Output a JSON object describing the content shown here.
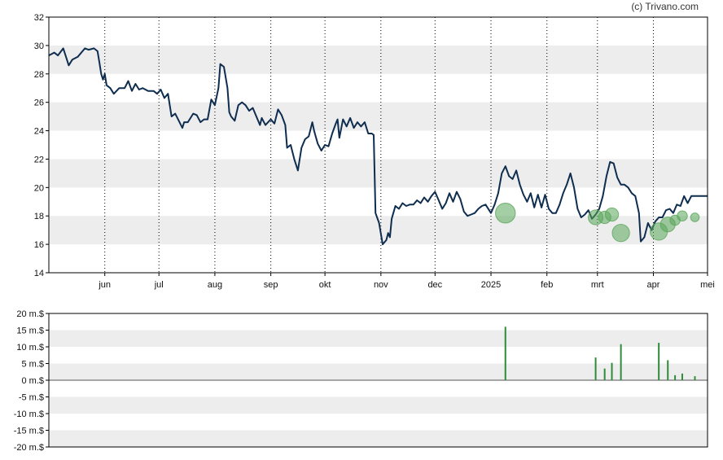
{
  "credit": "(c) Trivano.com",
  "colors": {
    "price_line": "#0e2d4f",
    "bar": "#2e8b3a",
    "bubble": "#5aa55a",
    "band": "#ededed",
    "grid_dotted": "#000000",
    "frame": "#000000"
  },
  "chart_data": [
    {
      "type": "line",
      "title": "",
      "xlabel": "",
      "ylabel": "",
      "ylim": [
        14,
        32
      ],
      "y_ticks": [
        "14",
        "16",
        "18",
        "20",
        "22",
        "24",
        "26",
        "28",
        "30",
        "32"
      ],
      "x_range": [
        "2024-05-01",
        "2025-05-01"
      ],
      "x_ticks": [
        {
          "label": "jun",
          "date": "2024-06-01"
        },
        {
          "label": "jul",
          "date": "2024-07-01"
        },
        {
          "label": "aug",
          "date": "2024-08-01"
        },
        {
          "label": "sep",
          "date": "2024-09-01"
        },
        {
          "label": "okt",
          "date": "2024-10-01"
        },
        {
          "label": "nov",
          "date": "2024-11-01"
        },
        {
          "label": "dec",
          "date": "2024-12-01"
        },
        {
          "label": "2025",
          "date": "2025-01-01"
        },
        {
          "label": "feb",
          "date": "2025-02-01"
        },
        {
          "label": "mrt",
          "date": "2025-03-01"
        },
        {
          "label": "apr",
          "date": "2025-04-01"
        },
        {
          "label": "mei",
          "date": "2025-05-01"
        }
      ],
      "grid": "alternating horizontal bands, dotted vertical month lines",
      "series": [
        {
          "points": [
            [
              "2024-05-01",
              29.3
            ],
            [
              "2024-05-04",
              29.5
            ],
            [
              "2024-05-06",
              29.3
            ],
            [
              "2024-05-09",
              29.8
            ],
            [
              "2024-05-11",
              29.0
            ],
            [
              "2024-05-12",
              28.6
            ],
            [
              "2024-05-14",
              29.0
            ],
            [
              "2024-05-17",
              29.2
            ],
            [
              "2024-05-21",
              29.8
            ],
            [
              "2024-05-23",
              29.7
            ],
            [
              "2024-05-26",
              29.8
            ],
            [
              "2024-05-28",
              29.6
            ],
            [
              "2024-05-29",
              28.8
            ],
            [
              "2024-05-30",
              28.0
            ],
            [
              "2024-05-31",
              27.6
            ],
            [
              "2024-06-01",
              28.0
            ],
            [
              "2024-06-02",
              27.2
            ],
            [
              "2024-06-04",
              27.0
            ],
            [
              "2024-06-06",
              26.6
            ],
            [
              "2024-06-09",
              27.0
            ],
            [
              "2024-06-12",
              27.0
            ],
            [
              "2024-06-14",
              27.5
            ],
            [
              "2024-06-16",
              26.8
            ],
            [
              "2024-06-18",
              27.3
            ],
            [
              "2024-06-20",
              26.9
            ],
            [
              "2024-06-22",
              27.0
            ],
            [
              "2024-06-25",
              26.8
            ],
            [
              "2024-06-28",
              26.8
            ],
            [
              "2024-06-30",
              26.6
            ],
            [
              "2024-07-02",
              26.9
            ],
            [
              "2024-07-04",
              26.3
            ],
            [
              "2024-07-06",
              26.6
            ],
            [
              "2024-07-08",
              25.0
            ],
            [
              "2024-07-10",
              25.2
            ],
            [
              "2024-07-12",
              24.7
            ],
            [
              "2024-07-14",
              24.2
            ],
            [
              "2024-07-15",
              24.6
            ],
            [
              "2024-07-17",
              24.6
            ],
            [
              "2024-07-20",
              25.2
            ],
            [
              "2024-07-22",
              25.1
            ],
            [
              "2024-07-24",
              24.6
            ],
            [
              "2024-07-26",
              24.8
            ],
            [
              "2024-07-28",
              24.8
            ],
            [
              "2024-07-30",
              26.2
            ],
            [
              "2024-08-01",
              25.8
            ],
            [
              "2024-08-03",
              27.0
            ],
            [
              "2024-08-04",
              28.7
            ],
            [
              "2024-08-06",
              28.5
            ],
            [
              "2024-08-08",
              27.0
            ],
            [
              "2024-08-09",
              25.3
            ],
            [
              "2024-08-10",
              25.0
            ],
            [
              "2024-08-12",
              24.7
            ],
            [
              "2024-08-14",
              25.8
            ],
            [
              "2024-08-16",
              26.0
            ],
            [
              "2024-08-18",
              25.8
            ],
            [
              "2024-08-20",
              25.4
            ],
            [
              "2024-08-22",
              25.6
            ],
            [
              "2024-08-24",
              25.0
            ],
            [
              "2024-08-26",
              24.4
            ],
            [
              "2024-08-27",
              24.9
            ],
            [
              "2024-08-29",
              24.4
            ],
            [
              "2024-09-01",
              24.8
            ],
            [
              "2024-09-03",
              24.5
            ],
            [
              "2024-09-05",
              25.5
            ],
            [
              "2024-09-07",
              25.1
            ],
            [
              "2024-09-09",
              24.4
            ],
            [
              "2024-09-10",
              22.8
            ],
            [
              "2024-09-12",
              23.0
            ],
            [
              "2024-09-14",
              22.0
            ],
            [
              "2024-09-16",
              21.2
            ],
            [
              "2024-09-18",
              22.8
            ],
            [
              "2024-09-20",
              23.4
            ],
            [
              "2024-09-22",
              23.6
            ],
            [
              "2024-09-24",
              24.6
            ],
            [
              "2024-09-25",
              24.0
            ],
            [
              "2024-09-27",
              23.1
            ],
            [
              "2024-09-29",
              22.6
            ],
            [
              "2024-10-01",
              23.0
            ],
            [
              "2024-10-03",
              22.9
            ],
            [
              "2024-10-05",
              23.8
            ],
            [
              "2024-10-07",
              24.5
            ],
            [
              "2024-10-08",
              24.8
            ],
            [
              "2024-10-09",
              23.5
            ],
            [
              "2024-10-11",
              24.8
            ],
            [
              "2024-10-13",
              24.3
            ],
            [
              "2024-10-15",
              24.9
            ],
            [
              "2024-10-17",
              24.2
            ],
            [
              "2024-10-19",
              24.6
            ],
            [
              "2024-10-21",
              24.3
            ],
            [
              "2024-10-23",
              24.6
            ],
            [
              "2024-10-25",
              23.8
            ],
            [
              "2024-10-27",
              23.8
            ],
            [
              "2024-10-28",
              23.7
            ],
            [
              "2024-10-29",
              18.2
            ],
            [
              "2024-10-31",
              17.5
            ],
            [
              "2024-11-02",
              16.0
            ],
            [
              "2024-11-04",
              16.3
            ],
            [
              "2024-11-05",
              16.8
            ],
            [
              "2024-11-06",
              16.5
            ],
            [
              "2024-11-07",
              17.8
            ],
            [
              "2024-11-09",
              18.7
            ],
            [
              "2024-11-11",
              18.5
            ],
            [
              "2024-11-13",
              18.9
            ],
            [
              "2024-11-15",
              18.7
            ],
            [
              "2024-11-17",
              18.8
            ],
            [
              "2024-11-19",
              18.8
            ],
            [
              "2024-11-21",
              19.1
            ],
            [
              "2024-11-23",
              18.9
            ],
            [
              "2024-11-25",
              19.3
            ],
            [
              "2024-11-27",
              19.0
            ],
            [
              "2024-11-29",
              19.4
            ],
            [
              "2024-12-01",
              19.7
            ],
            [
              "2024-12-03",
              19.1
            ],
            [
              "2024-12-05",
              18.5
            ],
            [
              "2024-12-07",
              18.9
            ],
            [
              "2024-12-09",
              19.6
            ],
            [
              "2024-12-11",
              19.0
            ],
            [
              "2024-12-13",
              19.7
            ],
            [
              "2024-12-15",
              19.2
            ],
            [
              "2024-12-17",
              18.3
            ],
            [
              "2024-12-19",
              18.0
            ],
            [
              "2024-12-21",
              18.1
            ],
            [
              "2024-12-23",
              18.2
            ],
            [
              "2024-12-25",
              18.5
            ],
            [
              "2024-12-27",
              18.7
            ],
            [
              "2024-12-29",
              18.8
            ],
            [
              "2024-12-31",
              18.4
            ],
            [
              "2025-01-01",
              18.2
            ],
            [
              "2025-01-03",
              18.8
            ],
            [
              "2025-01-05",
              19.6
            ],
            [
              "2025-01-07",
              21.0
            ],
            [
              "2025-01-09",
              21.5
            ],
            [
              "2025-01-11",
              20.8
            ],
            [
              "2025-01-13",
              20.6
            ],
            [
              "2025-01-15",
              21.2
            ],
            [
              "2025-01-17",
              20.2
            ],
            [
              "2025-01-19",
              19.5
            ],
            [
              "2025-01-21",
              19.0
            ],
            [
              "2025-01-23",
              19.6
            ],
            [
              "2025-01-25",
              18.6
            ],
            [
              "2025-01-27",
              19.5
            ],
            [
              "2025-01-29",
              18.6
            ],
            [
              "2025-01-31",
              19.5
            ],
            [
              "2025-02-02",
              18.5
            ],
            [
              "2025-02-04",
              18.2
            ],
            [
              "2025-02-06",
              18.2
            ],
            [
              "2025-02-08",
              18.8
            ],
            [
              "2025-02-10",
              19.6
            ],
            [
              "2025-02-12",
              20.2
            ],
            [
              "2025-02-14",
              21.0
            ],
            [
              "2025-02-16",
              20.0
            ],
            [
              "2025-02-18",
              18.5
            ],
            [
              "2025-02-20",
              17.9
            ],
            [
              "2025-02-22",
              18.1
            ],
            [
              "2025-02-24",
              18.4
            ],
            [
              "2025-02-26",
              17.8
            ],
            [
              "2025-02-28",
              18.1
            ],
            [
              "2025-03-02",
              18.5
            ],
            [
              "2025-03-04",
              19.4
            ],
            [
              "2025-03-06",
              20.8
            ],
            [
              "2025-03-08",
              21.8
            ],
            [
              "2025-03-10",
              21.7
            ],
            [
              "2025-03-12",
              20.7
            ],
            [
              "2025-03-14",
              20.2
            ],
            [
              "2025-03-16",
              20.2
            ],
            [
              "2025-03-18",
              20.0
            ],
            [
              "2025-03-20",
              19.6
            ],
            [
              "2025-03-22",
              19.4
            ],
            [
              "2025-03-24",
              18.2
            ],
            [
              "2025-03-25",
              16.2
            ],
            [
              "2025-03-27",
              16.5
            ],
            [
              "2025-03-29",
              17.5
            ],
            [
              "2025-03-31",
              17.0
            ],
            [
              "2025-04-02",
              17.6
            ],
            [
              "2025-04-04",
              17.9
            ],
            [
              "2025-04-06",
              17.9
            ],
            [
              "2025-04-08",
              18.4
            ],
            [
              "2025-04-10",
              18.5
            ],
            [
              "2025-04-12",
              18.2
            ],
            [
              "2025-04-14",
              18.8
            ],
            [
              "2025-04-16",
              18.7
            ],
            [
              "2025-04-18",
              19.4
            ],
            [
              "2025-04-20",
              18.9
            ],
            [
              "2025-04-22",
              19.4
            ],
            [
              "2025-05-01",
              19.4
            ]
          ]
        }
      ],
      "bubbles": [
        {
          "date": "2025-01-09",
          "value": 18.2,
          "size": 16
        },
        {
          "date": "2025-02-28",
          "value": 17.9,
          "size": 7
        },
        {
          "date": "2025-03-05",
          "value": 17.9,
          "size": 4
        },
        {
          "date": "2025-03-09",
          "value": 18.1,
          "size": 5
        },
        {
          "date": "2025-03-14",
          "value": 16.8,
          "size": 11
        },
        {
          "date": "2025-04-04",
          "value": 16.9,
          "size": 11
        },
        {
          "date": "2025-04-09",
          "value": 17.4,
          "size": 7
        },
        {
          "date": "2025-04-13",
          "value": 17.7,
          "size": 2
        },
        {
          "date": "2025-04-17",
          "value": 18.0,
          "size": 2
        },
        {
          "date": "2025-04-24",
          "value": 17.9,
          "size": 1
        }
      ]
    },
    {
      "type": "bar",
      "title": "",
      "xlabel": "",
      "ylabel": "",
      "ylim": [
        -20,
        20
      ],
      "y_ticks": [
        "20 m.$",
        "15 m.$",
        "10 m.$",
        "5 m.$",
        "0 m.$",
        "-5 m.$",
        "-10 m.$",
        "-15 m.$",
        "-20 m.$"
      ],
      "series": [
        {
          "points": [
            [
              "2025-01-09",
              16.0
            ],
            [
              "2025-02-28",
              6.8
            ],
            [
              "2025-03-05",
              3.5
            ],
            [
              "2025-03-09",
              5.2
            ],
            [
              "2025-03-14",
              10.8
            ],
            [
              "2025-04-04",
              11.2
            ],
            [
              "2025-04-09",
              6.0
            ],
            [
              "2025-04-13",
              1.5
            ],
            [
              "2025-04-17",
              2.0
            ],
            [
              "2025-04-24",
              1.2
            ]
          ]
        }
      ]
    }
  ]
}
